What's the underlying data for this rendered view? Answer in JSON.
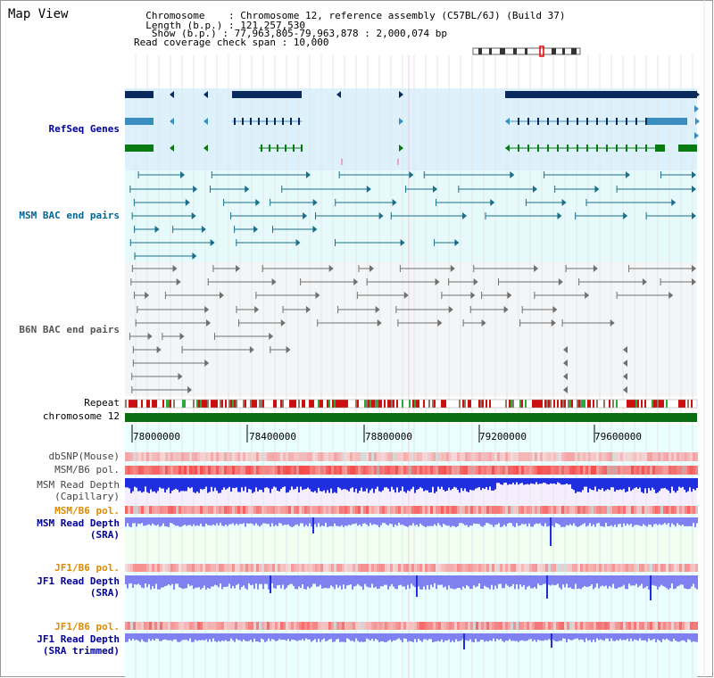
{
  "title": "Map View",
  "header": {
    "chromosome_line": "  Chromosome    : Chromosome 12, reference assembly (C57BL/6J) (Build 37)",
    "length_line": "  Length (b.p.) : 121,257,530",
    "show_line": "   Show (b.p.) : 77,963,805-79,963,878 : 2,000,074 bp",
    "span_line": "Read coverage check span : 10,000"
  },
  "tracks": {
    "refseq": "RefSeq Genes",
    "msm_bac": "MSM BAC end pairs",
    "b6n_bac": "B6N BAC end pairs",
    "repeat": "Repeat",
    "chromosome": "chromosome 12",
    "dbsnp": "dbSNP(Mouse)",
    "msm_b6_pol": "MSM/B6 pol.",
    "msm_depth_cap_1": "MSM Read Depth",
    "msm_depth_cap_2": "(Capillary)",
    "msm_b6_pol_2": "MSM/B6 pol.",
    "msm_depth_sra_1": "MSM Read Depth",
    "msm_depth_sra_2": "(SRA)",
    "jf1_b6_pol": "JF1/B6 pol.",
    "jf1_depth_sra_1": "JF1 Read Depth",
    "jf1_depth_sra_2": "(SRA)",
    "jf1_b6_pol_2": "JF1/B6 pol.",
    "jf1_depth_trim_1": "JF1 Read Depth",
    "jf1_depth_trim_2": "(SRA trimmed)"
  },
  "axis": {
    "ticks": [
      "78000000",
      "78400000",
      "78800000",
      "79200000",
      "79600000"
    ]
  },
  "colors": {
    "gene_dark": "#0a2a5e",
    "gene_mid": "#3b8fc0",
    "gene_green": "#0a7a12",
    "msm_pair": "#1b6f8a",
    "b6n_pair": "#707070",
    "depth_blue": "#1f2fe0",
    "depth_light": "#8080f0",
    "pol_red": "#ee3333",
    "label_blue": "#000099",
    "label_orange": "#e08a00",
    "label_teal": "#006699"
  }
}
